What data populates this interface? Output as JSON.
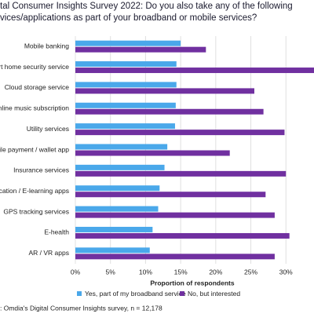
{
  "chart_data": {
    "type": "bar",
    "orientation": "horizontal",
    "title": [
      "tal Consumer Insights Survey 2022: Do you also take any of the following",
      "vices/applications as part of your broadband or mobile services?"
    ],
    "categories": [
      "Mobile banking",
      "rt home security service",
      "Cloud storage service",
      "Online music subscription",
      "Utility services",
      "bile payment / wallet app",
      "Insurance services",
      "ucation / E-learning apps",
      "GPS tracking services",
      "E-health",
      "AR / VR apps"
    ],
    "series": [
      {
        "name": "Yes, part of my broadband service",
        "color": "#4aa8ea",
        "values": [
          15.0,
          14.4,
          14.4,
          14.3,
          14.2,
          13.1,
          12.7,
          12.0,
          11.8,
          11.0,
          10.6
        ]
      },
      {
        "name": "No, but interested",
        "color": "#7030a0",
        "values": [
          18.6,
          34,
          25.5,
          26.8,
          29.8,
          22.0,
          30.0,
          27.1,
          28.4,
          30.5,
          28.4
        ]
      }
    ],
    "xlim": [
      0,
      34
    ],
    "xticks": [
      {
        "value": 0,
        "label": "0%"
      },
      {
        "value": 5,
        "label": "5%"
      },
      {
        "value": 10,
        "label": "10%"
      },
      {
        "value": 15,
        "label": "15%"
      },
      {
        "value": 20,
        "label": "20%"
      },
      {
        "value": 25,
        "label": "25%"
      },
      {
        "value": 30,
        "label": "30%"
      }
    ],
    "xlabel": "Proportion of respondents",
    "grid": true,
    "legend": "bottom",
    "source": ": Omdia's Digital Consumer Insights survey, n = 12,178"
  }
}
